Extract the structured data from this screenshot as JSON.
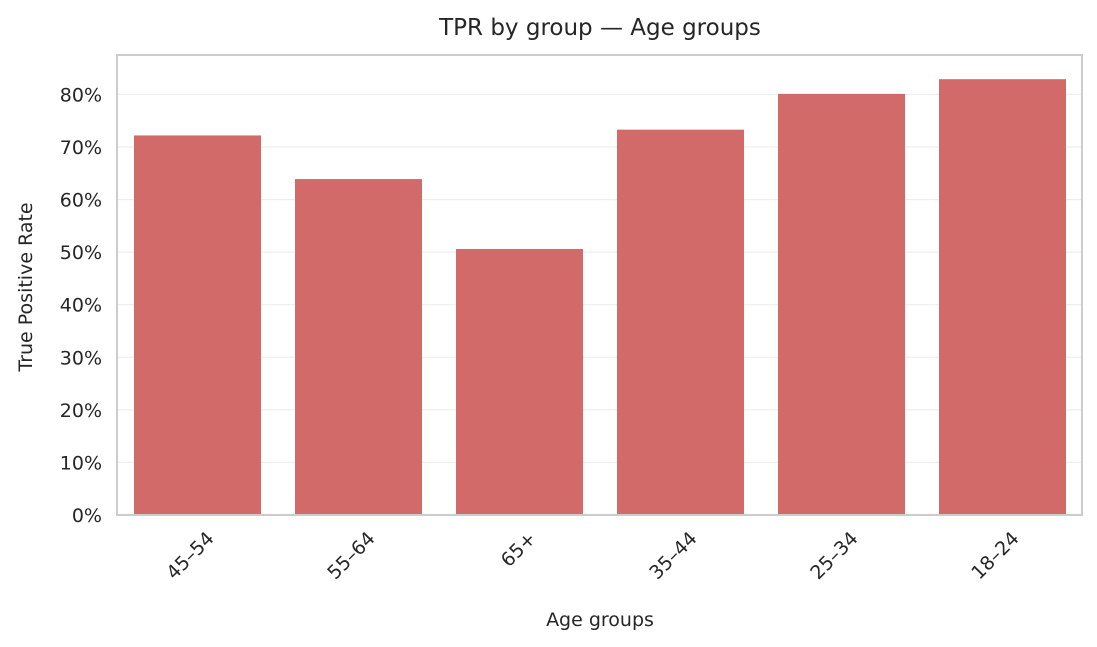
{
  "chart_data": {
    "type": "bar",
    "title": "TPR by group — Age groups",
    "xlabel": "Age groups",
    "ylabel": "True Positive Rate",
    "categories": [
      "45–54",
      "55–64",
      "65+",
      "35–44",
      "25–34",
      "18–24"
    ],
    "values": [
      0.722,
      0.639,
      0.506,
      0.733,
      0.801,
      0.829
    ],
    "ylim": [
      0,
      0.875
    ],
    "yticks": [
      0,
      0.1,
      0.2,
      0.3,
      0.4,
      0.5,
      0.6,
      0.7,
      0.8
    ],
    "ytick_labels": [
      "0%",
      "10%",
      "20%",
      "30%",
      "40%",
      "50%",
      "60%",
      "70%",
      "80%"
    ],
    "grid": "horizontal",
    "bar_color": "#d26a69"
  }
}
